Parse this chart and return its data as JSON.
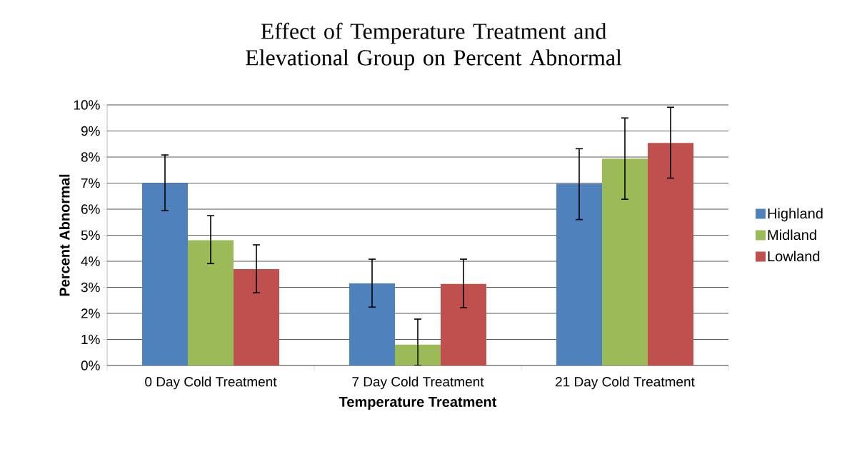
{
  "chart_data": {
    "type": "bar",
    "title": "Effect of Temperature Treatment and Elevational Group on Percent Abnormal",
    "xlabel": "Temperature Treatment",
    "ylabel": "Percent Abnormal",
    "categories": [
      "0 Day Cold Treatment",
      "7 Day Cold Treatment",
      "21 Day Cold Treatment"
    ],
    "series": [
      {
        "name": "Highland",
        "color": "#4f81bd",
        "values": [
          7.0,
          3.15,
          6.97
        ],
        "errors": [
          [
            5.94,
            8.08
          ],
          [
            2.24,
            4.08
          ],
          [
            5.6,
            8.32
          ]
        ]
      },
      {
        "name": "Midland",
        "color": "#9bbb59",
        "values": [
          4.81,
          0.8,
          7.94
        ],
        "errors": [
          [
            3.91,
            5.75
          ],
          [
            0,
            1.78
          ],
          [
            6.38,
            9.5
          ]
        ]
      },
      {
        "name": "Lowland",
        "color": "#c0504d",
        "values": [
          3.7,
          3.13,
          8.54
        ],
        "errors": [
          [
            2.79,
            4.63
          ],
          [
            2.22,
            4.08
          ],
          [
            7.19,
            9.91
          ]
        ]
      }
    ],
    "ylim": [
      0,
      10
    ],
    "yticks": [
      {
        "value": 0,
        "label": "0%"
      },
      {
        "value": 1,
        "label": "1%"
      },
      {
        "value": 2,
        "label": "2%"
      },
      {
        "value": 3,
        "label": "3%"
      },
      {
        "value": 4,
        "label": "4%"
      },
      {
        "value": 5,
        "label": "5%"
      },
      {
        "value": 6,
        "label": "6%"
      },
      {
        "value": 7,
        "label": "7%"
      },
      {
        "value": 8,
        "label": "8%"
      },
      {
        "value": 9,
        "label": "9%"
      },
      {
        "value": 10,
        "label": "10%"
      }
    ],
    "grid": "y",
    "legend": "right"
  }
}
